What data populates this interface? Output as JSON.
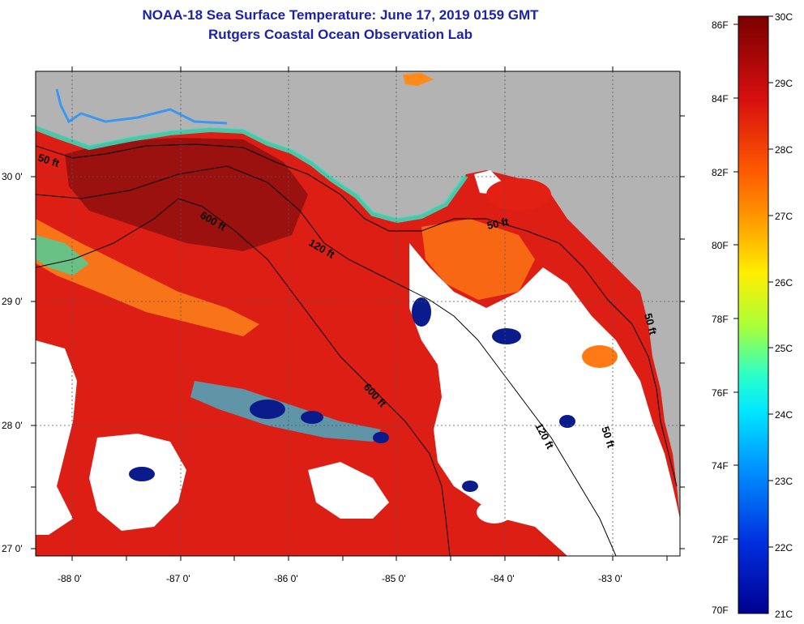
{
  "header": {
    "title": "NOAA-18 Sea Surface Temperature:  June 17, 2019 0159 GMT",
    "subtitle": "Rutgers Coastal Ocean Observation Lab"
  },
  "axes": {
    "lat_ticks": [
      "30 0'",
      "29 0'",
      "28 0'",
      "27 0'"
    ],
    "lon_ticks": [
      "-88 0'",
      "-87 0'",
      "-86 0'",
      "-85 0'",
      "-84 0'",
      "-83 0'"
    ]
  },
  "depth_contours": {
    "labels": [
      "50 ft",
      "600 ft",
      "120 ft",
      "50 ft",
      "600 ft",
      "120 ft",
      "50 ft",
      "50 ft"
    ]
  },
  "colorbar": {
    "fahrenheit": [
      "86F",
      "84F",
      "82F",
      "80F",
      "78F",
      "76F",
      "74F",
      "72F",
      "70F"
    ],
    "celsius": [
      "30C",
      "29C",
      "28C",
      "27C",
      "26C",
      "25C",
      "24C",
      "23C",
      "22C",
      "21C"
    ]
  },
  "colors": {
    "land": "#b3b3b3",
    "cloud": "#ffffff",
    "title": "#1c23a6",
    "warm_dark": "#8a0d0d",
    "warm": "#e01b12",
    "cold": "#0a1c8c"
  }
}
